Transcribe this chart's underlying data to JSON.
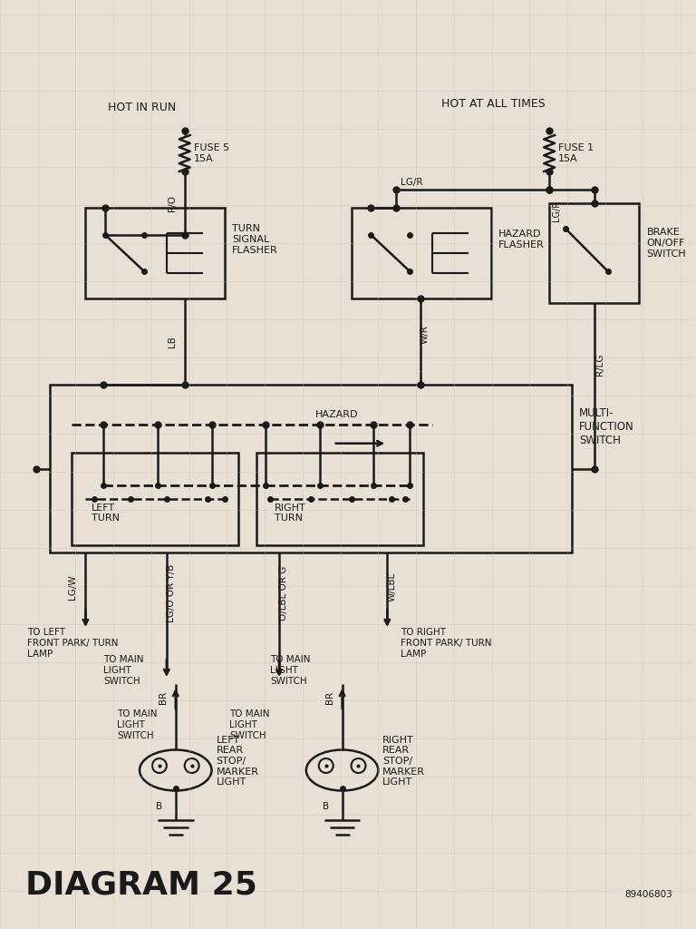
{
  "bg_color": "#e8e0d5",
  "line_color": "#1a1a1a",
  "title": "DIAGRAM 25",
  "diagram_id": "89406803",
  "grid_color": "#c8bfb0",
  "fuse5_label": "FUSE 5\n15A",
  "fuse1_label": "FUSE 1\n15A",
  "hot_in_run": "HOT IN RUN",
  "hot_at_all_times": "HOT AT ALL TIMES",
  "turn_flasher_label": "TURN\nSIGNAL\nFLASHER",
  "hazard_flasher_label": "HAZARD\nFLASHER",
  "brake_switch_label": "BRAKE\nON/OFF\nSWITCH",
  "mfs_label": "MULTI-\nFUNCTION\nSWITCH",
  "left_turn_label": "LEFT\nTURN",
  "right_turn_label": "RIGHT\nTURN",
  "hazard_label": "HAZARD",
  "wire_po": "P/O",
  "wire_lb": "LB",
  "wire_lgr": "LG/R",
  "wire_wr": "W/R",
  "wire_rlg": "R/LG",
  "wire_lgw": "LG/W",
  "wire_lgo": "LG/O OR Y/B",
  "wire_olbl": "O/LBL OR G",
  "wire_wlbl": "W/LBL",
  "wire_br": "BR",
  "wire_b": "B",
  "dest_left_front": "TO LEFT\nFRONT PARK/ TURN\nLAMP",
  "dest_right_front": "TO RIGHT\nFRONT PARK/ TURN\nLAMP",
  "dest_main_left": "TO MAIN\nLIGHT\nSWITCH",
  "dest_main_right": "TO MAIN\nLIGHT\nSWITCH",
  "left_rear_label": "LEFT\nREAR\nSTOP/\nMARKER\nLIGHT",
  "right_rear_label": "RIGHT\nREAR\nSTOP/\nMARKER\nLIGHT"
}
